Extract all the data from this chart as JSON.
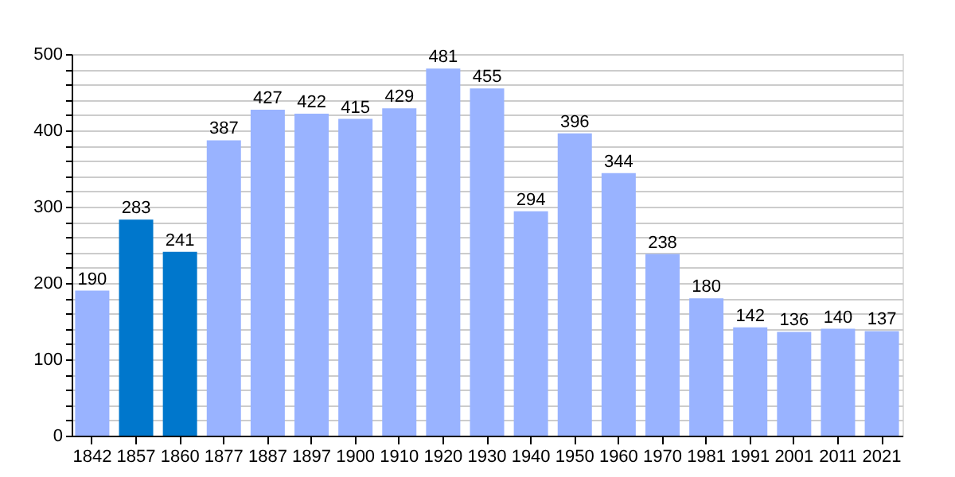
{
  "chart_data": {
    "type": "bar",
    "categories": [
      "1842",
      "1857",
      "1860",
      "1877",
      "1887",
      "1897",
      "1900",
      "1910",
      "1920",
      "1930",
      "1940",
      "1950",
      "1960",
      "1970",
      "1981",
      "1991",
      "2001",
      "2011",
      "2021"
    ],
    "values": [
      190,
      283,
      241,
      387,
      427,
      422,
      415,
      429,
      481,
      455,
      294,
      396,
      344,
      238,
      180,
      142,
      136,
      140,
      137
    ],
    "colors": [
      "#99b3ff",
      "#0077cc",
      "#0077cc",
      "#99b3ff",
      "#99b3ff",
      "#99b3ff",
      "#99b3ff",
      "#99b3ff",
      "#99b3ff",
      "#99b3ff",
      "#99b3ff",
      "#99b3ff",
      "#99b3ff",
      "#99b3ff",
      "#99b3ff",
      "#99b3ff",
      "#99b3ff",
      "#99b3ff",
      "#99b3ff"
    ],
    "ylim": [
      0,
      500
    ],
    "yticks": [
      0,
      {
        "value": 20,
        "label": null
      },
      {
        "value": 40,
        "label": null
      },
      {
        "value": 60,
        "label": null
      },
      {
        "value": 80,
        "label": null
      },
      100,
      {
        "value": 120,
        "label": null
      },
      {
        "value": 140,
        "label": null
      },
      {
        "value": 160,
        "label": null
      },
      {
        "value": 180,
        "label": null
      },
      200,
      {
        "value": 220,
        "label": null
      },
      {
        "value": 240,
        "label": null
      },
      {
        "value": 260,
        "label": null
      },
      {
        "value": 280,
        "label": null
      },
      300,
      {
        "value": 320,
        "label": null
      },
      {
        "value": 340,
        "label": null
      },
      {
        "value": 360,
        "label": null
      },
      {
        "value": 380,
        "label": null
      },
      400,
      {
        "value": 420,
        "label": null
      },
      {
        "value": 440,
        "label": null
      },
      {
        "value": 460,
        "label": null
      },
      {
        "value": 480,
        "label": null
      },
      500
    ],
    "grid": "y",
    "data_labels": true
  }
}
